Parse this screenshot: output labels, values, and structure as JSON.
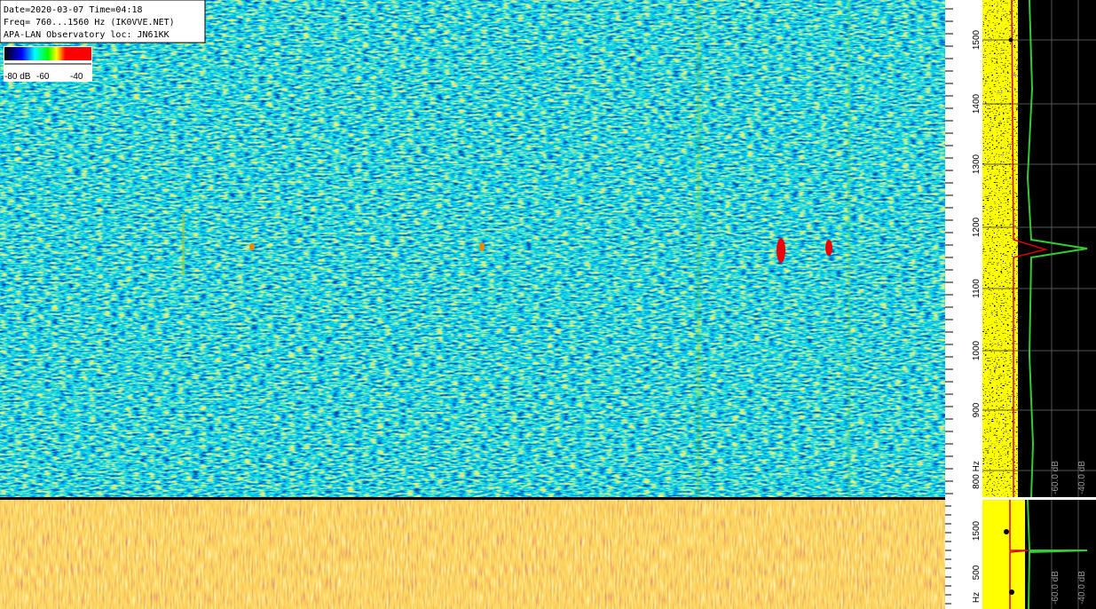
{
  "header": {
    "lines": [
      "Date=2020-03-07 Time=04:18",
      "Freq= 760...1560 Hz (IK0VVE.NET)",
      "APA-LAN Observatory loc: JN61KK"
    ]
  },
  "colorbar": {
    "labels": [
      "-80 dB",
      "-60",
      "-40"
    ]
  },
  "upper_axis": {
    "labels": [
      "1500",
      "1400",
      "1300",
      "1200",
      "1100",
      "1000",
      "900",
      "800 Hz"
    ]
  },
  "upper_spectrum": {
    "labels": [
      "-60.0 dB",
      "-40.0 dB"
    ]
  },
  "lower_axis": {
    "labels": [
      "1500",
      "500",
      "Hz"
    ]
  },
  "lower_spectrum": {
    "labels": [
      "-60.0 dB",
      "-40.0 dB"
    ]
  }
}
